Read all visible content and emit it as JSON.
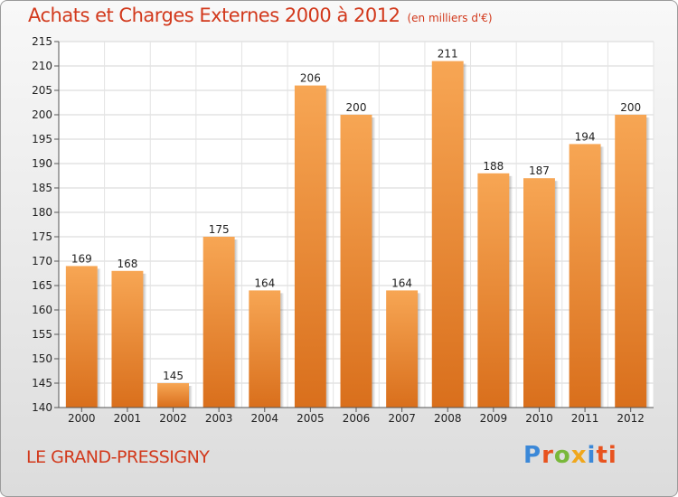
{
  "title": "Achats et Charges Externes 2000 à 2012",
  "subtitle": "(en milliers d'€)",
  "commune": "LE GRAND-PRESSIGNY",
  "logo": {
    "letters": [
      "P",
      "r",
      "o",
      "x",
      "i",
      "ti"
    ]
  },
  "colors": {
    "bar_top": "#f7a654",
    "bar_bottom": "#d96f1c",
    "title": "#d2391c"
  },
  "chart_data": {
    "type": "bar",
    "title": "Achats et Charges Externes 2000 à 2012",
    "subtitle": "(en milliers d'€)",
    "xlabel": "",
    "ylabel": "",
    "categories": [
      "2000",
      "2001",
      "2002",
      "2003",
      "2004",
      "2005",
      "2006",
      "2007",
      "2008",
      "2009",
      "2010",
      "2011",
      "2012"
    ],
    "values": [
      169,
      168,
      145,
      175,
      164,
      206,
      200,
      164,
      211,
      188,
      187,
      194,
      200
    ],
    "ylim": [
      140,
      215
    ],
    "yticks": [
      140,
      145,
      150,
      155,
      160,
      165,
      170,
      175,
      180,
      185,
      190,
      195,
      200,
      205,
      210,
      215
    ],
    "grid": true,
    "legend": "none"
  }
}
